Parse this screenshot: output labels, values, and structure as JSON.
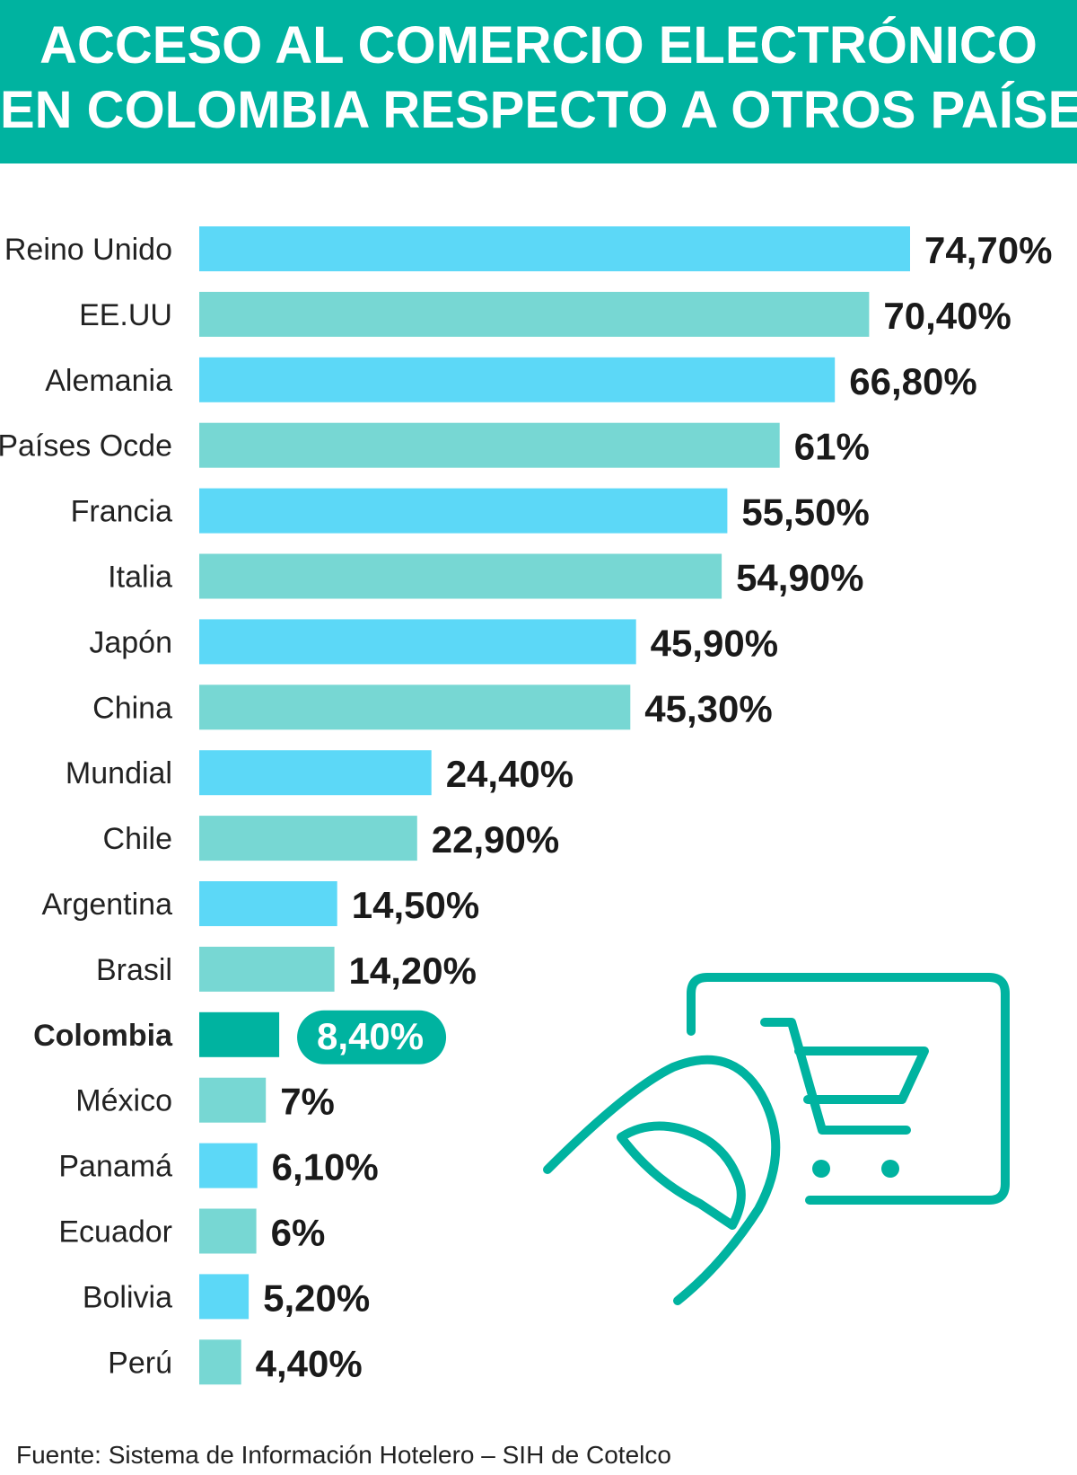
{
  "header": {
    "title_line_1": "ACCESO AL COMERCIO ELECTRÓNICO",
    "title_line_2": "EN COLOMBIA RESPECTO A OTROS PAÍSES"
  },
  "colors": {
    "banner": "#00b3a0",
    "bar_blue": "#5cd8f7",
    "bar_teal": "#77d7d3",
    "highlight": "#00b3a0",
    "icon_stroke": "#00b3a0"
  },
  "chart_data": {
    "type": "bar",
    "orientation": "horizontal",
    "title": "ACCESO AL COMERCIO ELECTRÓNICO EN COLOMBIA RESPECTO A OTROS PAÍSES",
    "categories": [
      "Reino Unido",
      "EE.UU",
      "Alemania",
      "Países Ocde",
      "Francia",
      "Italia",
      "Japón",
      "China",
      "Mundial",
      "Chile",
      "Argentina",
      "Brasil",
      "Colombia",
      "México",
      "Panamá",
      "Ecuador",
      "Bolivia",
      "Perú"
    ],
    "values": [
      74.7,
      70.4,
      66.8,
      61,
      55.5,
      54.9,
      45.9,
      45.3,
      24.4,
      22.9,
      14.5,
      14.2,
      8.4,
      7,
      6.1,
      6,
      5.2,
      4.4
    ],
    "value_labels": [
      "74,70%",
      "70,40%",
      "66,80%",
      "61%",
      "55,50%",
      "54,90%",
      "45,90%",
      "45,30%",
      "24,40%",
      "22,90%",
      "14,50%",
      "14,20%",
      "8,40%",
      "7%",
      "6,10%",
      "6%",
      "5,20%",
      "4,40%"
    ],
    "highlight": "Colombia",
    "xlim": [
      0,
      74.7
    ],
    "grid": false,
    "legend": "none",
    "xlabel": "",
    "ylabel": ""
  },
  "illustration": {
    "icon": "shopping-cart-hand-icon"
  },
  "footer": {
    "source": "Fuente: Sistema de Información Hotelero – SIH de Cotelco"
  }
}
